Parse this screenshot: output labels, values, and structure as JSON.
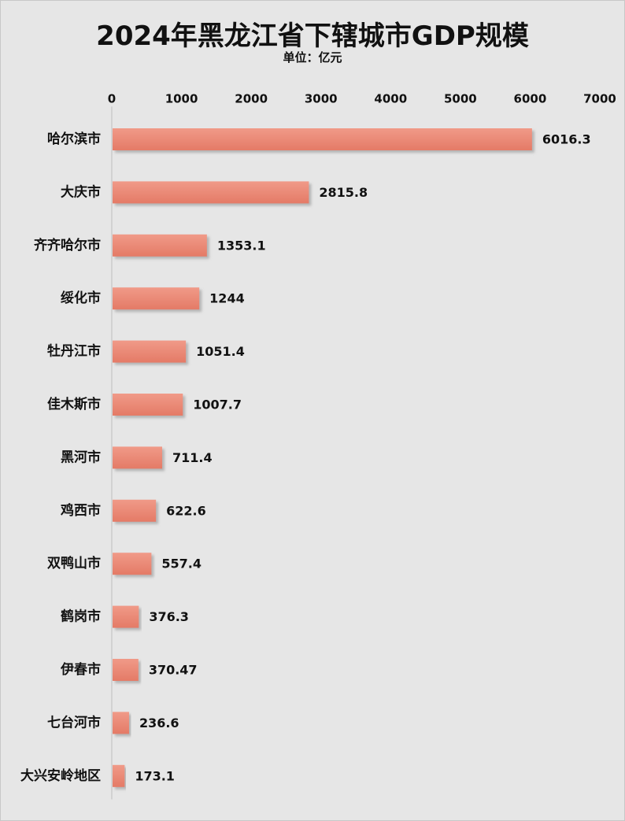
{
  "chart_data": {
    "type": "bar",
    "orientation": "horizontal",
    "title": "2024年黑龙江省下辖城市GDP规模",
    "subtitle": "单位：亿元",
    "categories": [
      "哈尔滨市",
      "大庆市",
      "齐齐哈尔市",
      "绥化市",
      "牡丹江市",
      "佳木斯市",
      "黑河市",
      "鸡西市",
      "双鸭山市",
      "鹤岗市",
      "伊春市",
      "七台河市",
      "大兴安岭地区"
    ],
    "values": [
      6016.3,
      2815.8,
      1353.1,
      1244,
      1051.4,
      1007.7,
      711.4,
      622.6,
      557.4,
      376.3,
      370.47,
      236.6,
      173.1
    ],
    "value_labels": [
      "6016.3",
      "2815.8",
      "1353.1",
      "1244",
      "1051.4",
      "1007.7",
      "711.4",
      "622.6",
      "557.4",
      "376.3",
      "370.47",
      "236.6",
      "173.1"
    ],
    "xlim": [
      0,
      7000
    ],
    "xticks": [
      "0",
      "1000",
      "2000",
      "3000",
      "4000",
      "5000",
      "6000",
      "7000"
    ],
    "axis_position": "top",
    "grid": false,
    "bar_color": "#e8826f",
    "bar_color_light": "#f2a08e",
    "background": "#e6e6e6"
  }
}
